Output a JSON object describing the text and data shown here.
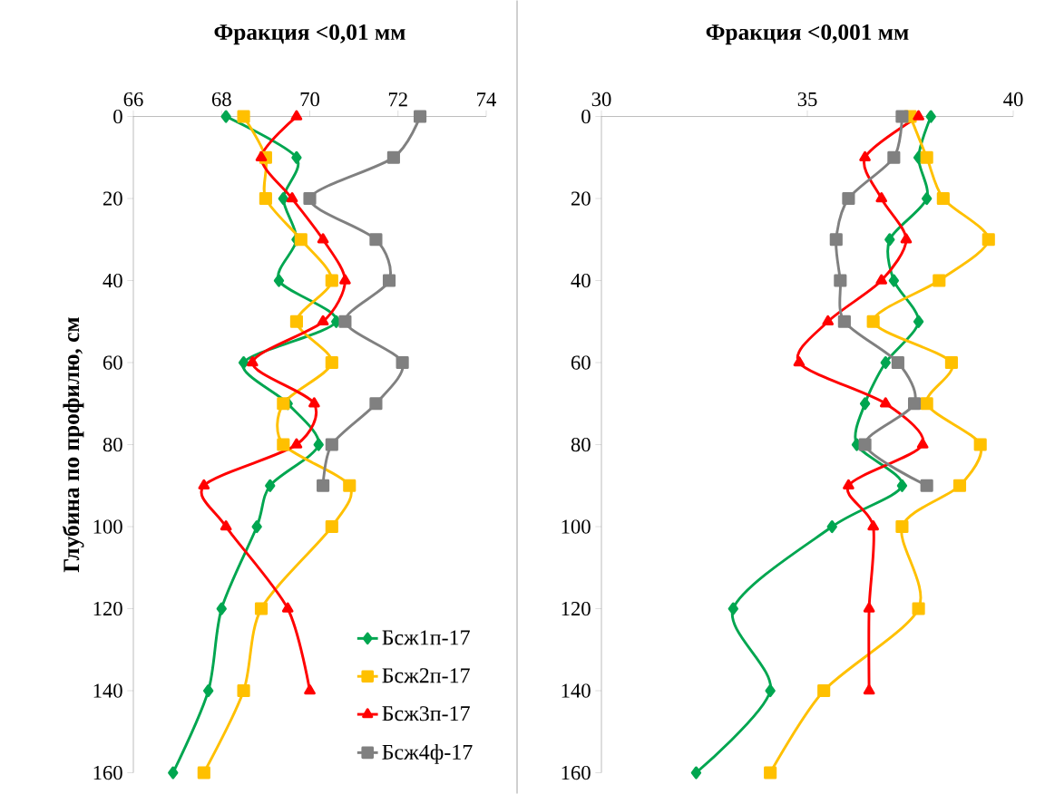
{
  "chart_data": [
    {
      "type": "line",
      "title": "Фракция <0,01 мм",
      "ylabel": "Глубина по профилю, см",
      "xlim": [
        66,
        74
      ],
      "xticks": [
        66,
        68,
        70,
        72,
        74
      ],
      "ylim": [
        160,
        0
      ],
      "yticks": [
        0,
        20,
        40,
        60,
        80,
        100,
        120,
        140,
        160
      ],
      "legend": "bottom right",
      "grid": false,
      "series": [
        {
          "name": "Бсж1п-17",
          "color": "#00a650",
          "marker": "diamond",
          "x": [
            68.1,
            69.7,
            69.4,
            69.7,
            69.3,
            70.6,
            68.5,
            69.5,
            70.2,
            69.1,
            68.8,
            68.0,
            67.7,
            66.9
          ],
          "values": [
            0,
            10,
            20,
            30,
            40,
            50,
            60,
            70,
            80,
            90,
            100,
            120,
            140,
            160
          ]
        },
        {
          "name": "Бсж2п-17",
          "color": "#ffc000",
          "marker": "square",
          "x": [
            68.5,
            69.0,
            69.0,
            69.8,
            70.5,
            69.7,
            70.5,
            69.4,
            69.4,
            70.9,
            70.5,
            68.9,
            68.5,
            67.6
          ],
          "values": [
            0,
            10,
            20,
            30,
            40,
            50,
            60,
            70,
            80,
            90,
            100,
            120,
            140,
            160
          ]
        },
        {
          "name": "Бсж3п-17",
          "color": "#ff0000",
          "marker": "triangle",
          "x": [
            69.7,
            68.9,
            69.6,
            70.3,
            70.8,
            70.3,
            68.7,
            70.1,
            69.7,
            67.6,
            68.1,
            69.5,
            70.0
          ],
          "values": [
            0,
            10,
            20,
            30,
            40,
            50,
            60,
            70,
            80,
            90,
            100,
            120,
            140
          ]
        },
        {
          "name": "Бсж4ф-17",
          "color": "#808080",
          "marker": "square",
          "x": [
            72.5,
            71.9,
            70.0,
            71.5,
            71.8,
            70.8,
            72.1,
            71.5,
            70.5,
            70.3
          ],
          "values": [
            0,
            10,
            20,
            30,
            40,
            50,
            60,
            70,
            80,
            90
          ]
        }
      ]
    },
    {
      "type": "line",
      "title": "Фракция <0,001 мм",
      "xlim": [
        30,
        40
      ],
      "xticks": [
        30,
        35,
        40
      ],
      "ylim": [
        160,
        0
      ],
      "yticks": [
        0,
        20,
        40,
        60,
        80,
        100,
        120,
        140,
        160
      ],
      "grid": false,
      "series": [
        {
          "color": "#00a650",
          "marker": "diamond",
          "x": [
            38.0,
            37.7,
            37.9,
            37.0,
            37.1,
            37.7,
            36.9,
            36.4,
            36.2,
            37.3,
            35.6,
            33.2,
            34.1,
            32.3
          ],
          "values": [
            0,
            10,
            20,
            30,
            40,
            50,
            60,
            70,
            80,
            90,
            100,
            120,
            140,
            160
          ]
        },
        {
          "color": "#ffc000",
          "marker": "square",
          "x": [
            37.5,
            37.9,
            38.3,
            39.4,
            38.2,
            36.6,
            38.5,
            37.9,
            39.2,
            38.7,
            37.3,
            37.7,
            35.4,
            34.1
          ],
          "values": [
            0,
            10,
            20,
            30,
            40,
            50,
            60,
            70,
            80,
            90,
            100,
            120,
            140,
            160
          ]
        },
        {
          "color": "#ff0000",
          "marker": "triangle",
          "x": [
            37.7,
            36.4,
            36.8,
            37.4,
            36.8,
            35.5,
            34.8,
            36.9,
            37.8,
            36.0,
            36.6,
            36.5,
            36.5
          ],
          "values": [
            0,
            10,
            20,
            30,
            40,
            50,
            60,
            70,
            80,
            90,
            100,
            120,
            140
          ]
        },
        {
          "color": "#808080",
          "marker": "square",
          "x": [
            37.3,
            37.1,
            36.0,
            35.7,
            35.8,
            35.9,
            37.2,
            37.6,
            36.4,
            37.9
          ],
          "values": [
            0,
            10,
            20,
            30,
            40,
            50,
            60,
            70,
            80,
            90
          ]
        }
      ]
    }
  ]
}
